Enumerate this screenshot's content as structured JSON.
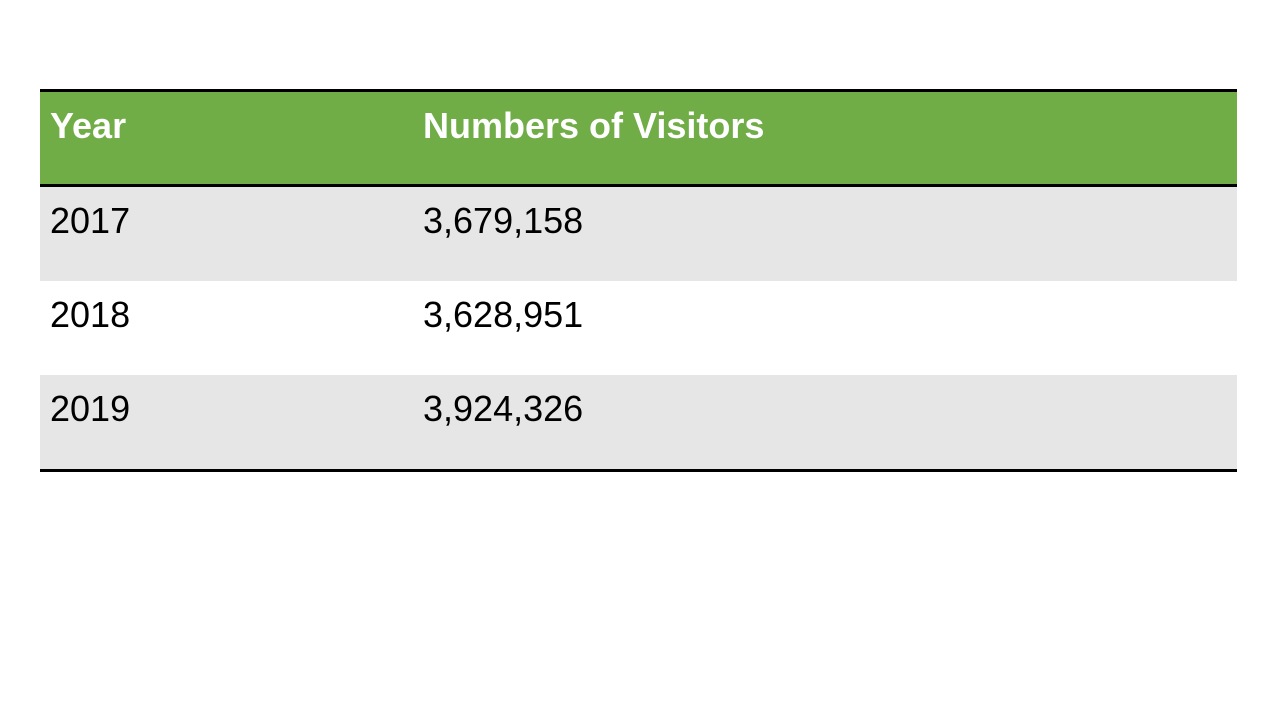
{
  "table": {
    "header": [
      "Year",
      "Numbers of Visitors"
    ],
    "rows": [
      [
        "2017",
        "3,679,158"
      ],
      [
        "2018",
        "3,628,951"
      ],
      [
        "2019",
        "3,924,326"
      ]
    ]
  }
}
